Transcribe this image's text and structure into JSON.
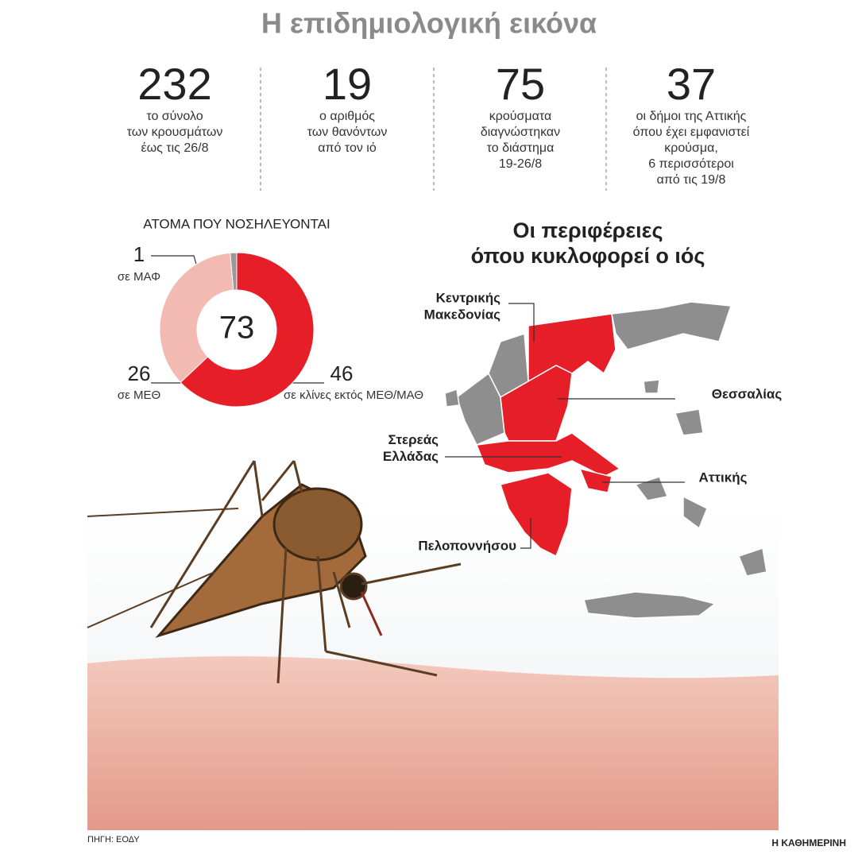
{
  "header": {
    "title": "Η επιδημιολογική εικόνα"
  },
  "stats": [
    {
      "value": 232,
      "lines": [
        "το σύνολο",
        "των κρουσμάτων",
        "έως τις 26/8"
      ]
    },
    {
      "value": 19,
      "lines": [
        "ο αριθμός",
        "των θανόντων",
        "από τον ιό"
      ]
    },
    {
      "value": 75,
      "lines": [
        "κρούσματα",
        "διαγνώστηκαν",
        "το διάστημα",
        "19-26/8"
      ]
    },
    {
      "value": 37,
      "lines": [
        "οι δήμοι της Αττικής",
        "όπου έχει εμφανιστεί",
        "κρούσμα,",
        "6 περισσότεροι",
        "από τις 19/8"
      ]
    }
  ],
  "chart_data": {
    "type": "donut",
    "title": "ΑΤΟΜΑ ΠΟΥ ΝΟΣΗΛΕΥΟΝΤΑΙ",
    "categories": [
      "σε ΜΑΦ",
      "σε ΜΕΘ",
      "σε κλίνες εκτός ΜΕΘ/ΜΑΘ"
    ],
    "values": [
      1,
      26,
      46
    ],
    "colors": [
      "#9a9a9a",
      "#f3b9b3",
      "#e61e27"
    ],
    "total": 73
  },
  "map": {
    "title_lines": [
      "Οι περιφέρειες",
      "όπου κυκλοφορεί ο ιός"
    ],
    "regions": [
      {
        "lines": [
          "Κεντρικής",
          "Μακεδονίας"
        ]
      },
      {
        "lines": [
          "Θεσσαλίας"
        ]
      },
      {
        "lines": [
          "Στερεάς",
          "Ελλάδας"
        ]
      },
      {
        "lines": [
          "Αττικής"
        ]
      },
      {
        "lines": [
          "Πελοποννήσου"
        ]
      }
    ]
  },
  "footer": {
    "source": "ΠΗΓΗ: ΕΟΔΥ",
    "brand": "Η ΚΑΘΗΜΕΡΙΝΗ"
  }
}
